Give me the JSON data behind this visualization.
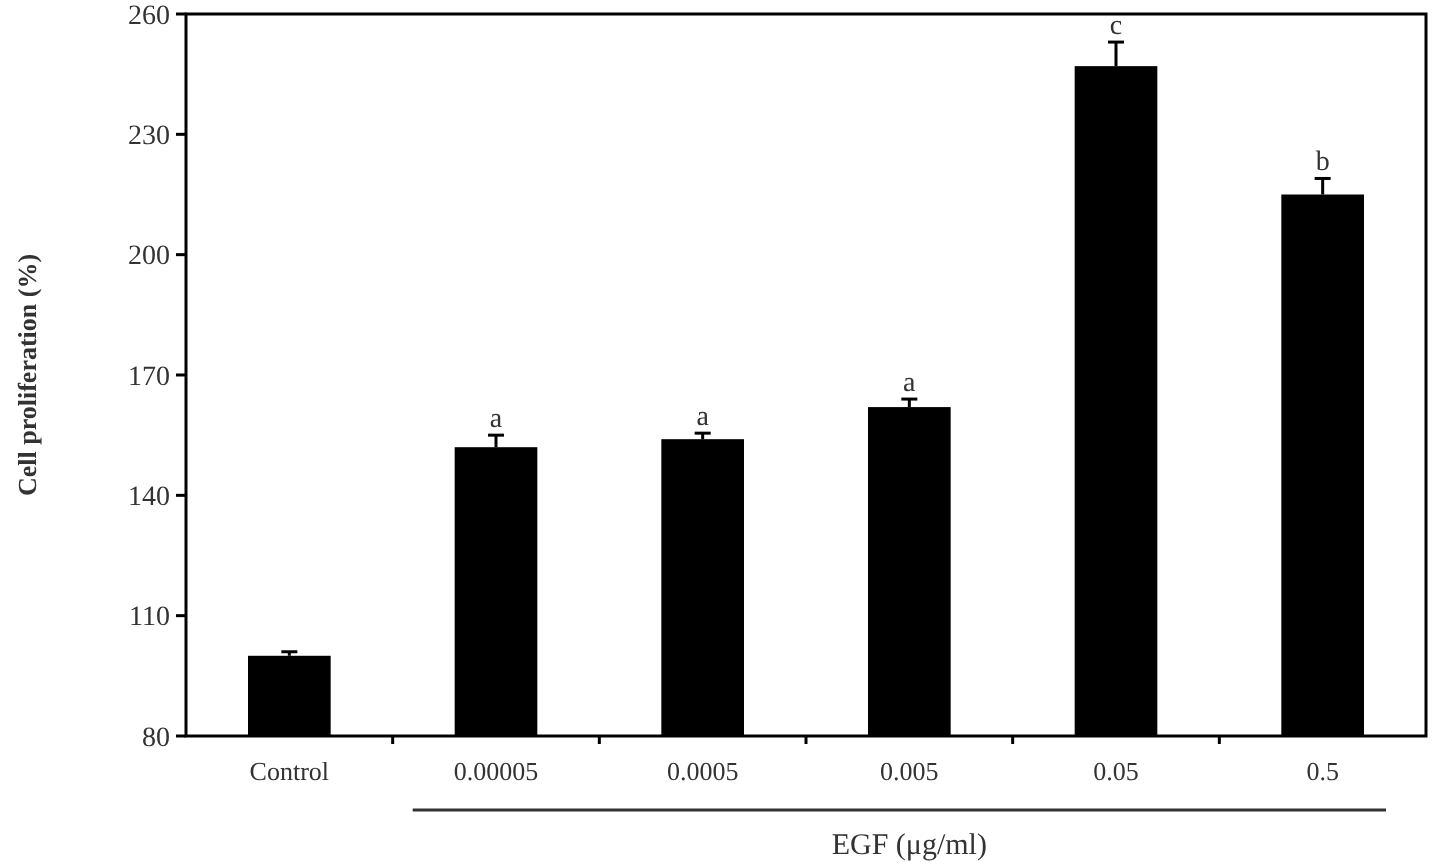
{
  "chart_data": {
    "type": "bar",
    "xlabel": "EGF (μg/ml)",
    "ylabel": "Cell proliferation (%)",
    "categories": [
      "Control",
      "0.00005",
      "0.0005",
      "0.005",
      "0.05",
      "0.5"
    ],
    "values": [
      100,
      152,
      154,
      162,
      247,
      215
    ],
    "errors": [
      1,
      3,
      1.5,
      2,
      6,
      4
    ],
    "color": "#000000",
    "ylim": [
      80,
      260
    ],
    "yticks": [
      80,
      110,
      140,
      170,
      200,
      230,
      260
    ],
    "grid": false,
    "annotations": [
      {
        "text": "a",
        "x": "0.00005",
        "y": 155
      },
      {
        "text": "a",
        "x": "0.0005",
        "y": 155.5
      },
      {
        "text": "a",
        "x": "0.005",
        "y": 164
      },
      {
        "text": "c",
        "x": "0.05",
        "y": 253
      },
      {
        "text": "b",
        "x": "0.5",
        "y": 219
      }
    ]
  }
}
